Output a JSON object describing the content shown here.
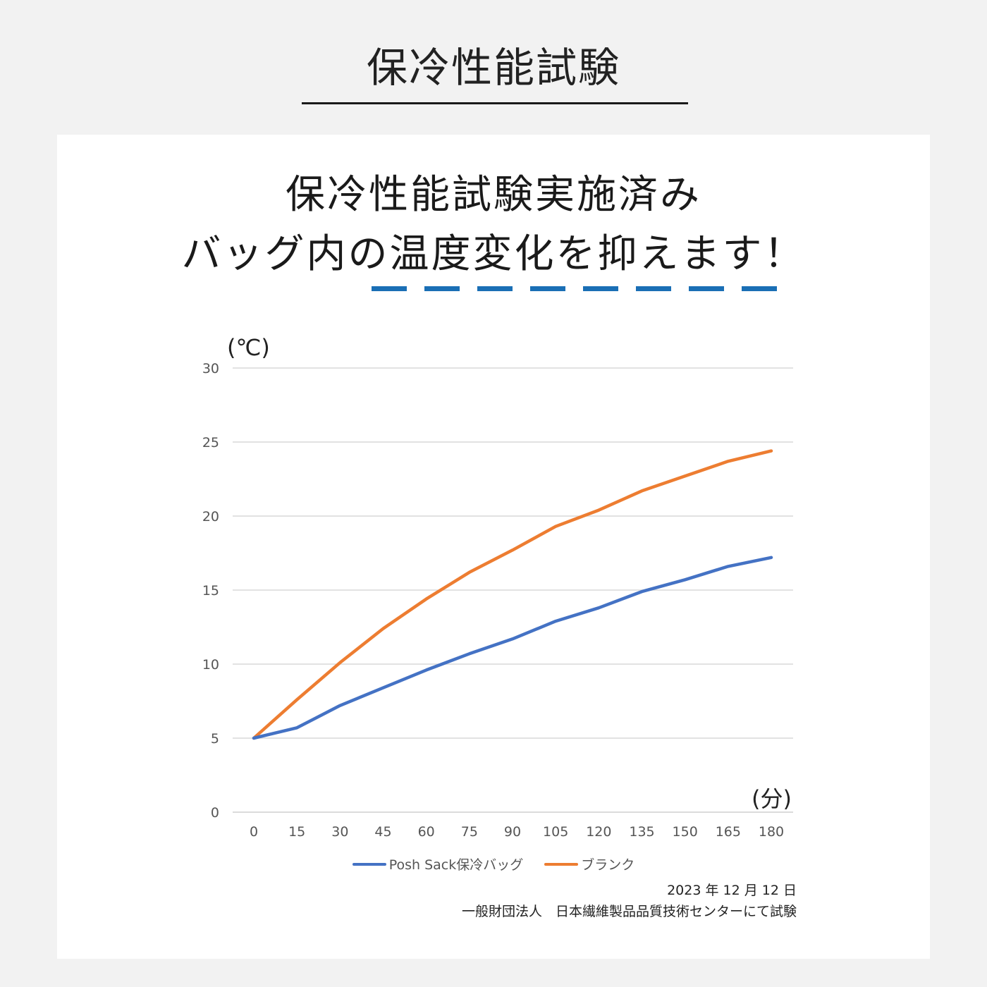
{
  "page": {
    "title": "保冷性能試験"
  },
  "card": {
    "headline_line1": "保冷性能試験実施済み",
    "headline_line2": "バッグ内の温度変化を抑えます！"
  },
  "chart_data": {
    "type": "line",
    "x": [
      0,
      15,
      30,
      45,
      60,
      75,
      90,
      105,
      120,
      135,
      150,
      165,
      180
    ],
    "series": [
      {
        "name": "Posh Sack保冷バッグ",
        "color": "#4472c4",
        "values": [
          5.0,
          5.7,
          7.2,
          8.4,
          9.6,
          10.7,
          11.7,
          12.9,
          13.8,
          14.9,
          15.7,
          16.6,
          17.2
        ]
      },
      {
        "name": "ブランク",
        "color": "#ed7d31",
        "values": [
          5.0,
          7.6,
          10.1,
          12.4,
          14.4,
          16.2,
          17.7,
          19.3,
          20.4,
          21.7,
          22.7,
          23.7,
          24.4
        ]
      }
    ],
    "y_ticks": [
      0,
      5,
      10,
      15,
      20,
      25,
      30
    ],
    "ylim": [
      0,
      30
    ],
    "y_unit": "(℃)",
    "x_unit": "(分)",
    "grid": true,
    "legend_position": "bottom"
  },
  "footnote": {
    "date": "2023 年 12 月 12 日",
    "source": "一般財団法人　日本繊維製品品質技術センターにて試験"
  }
}
